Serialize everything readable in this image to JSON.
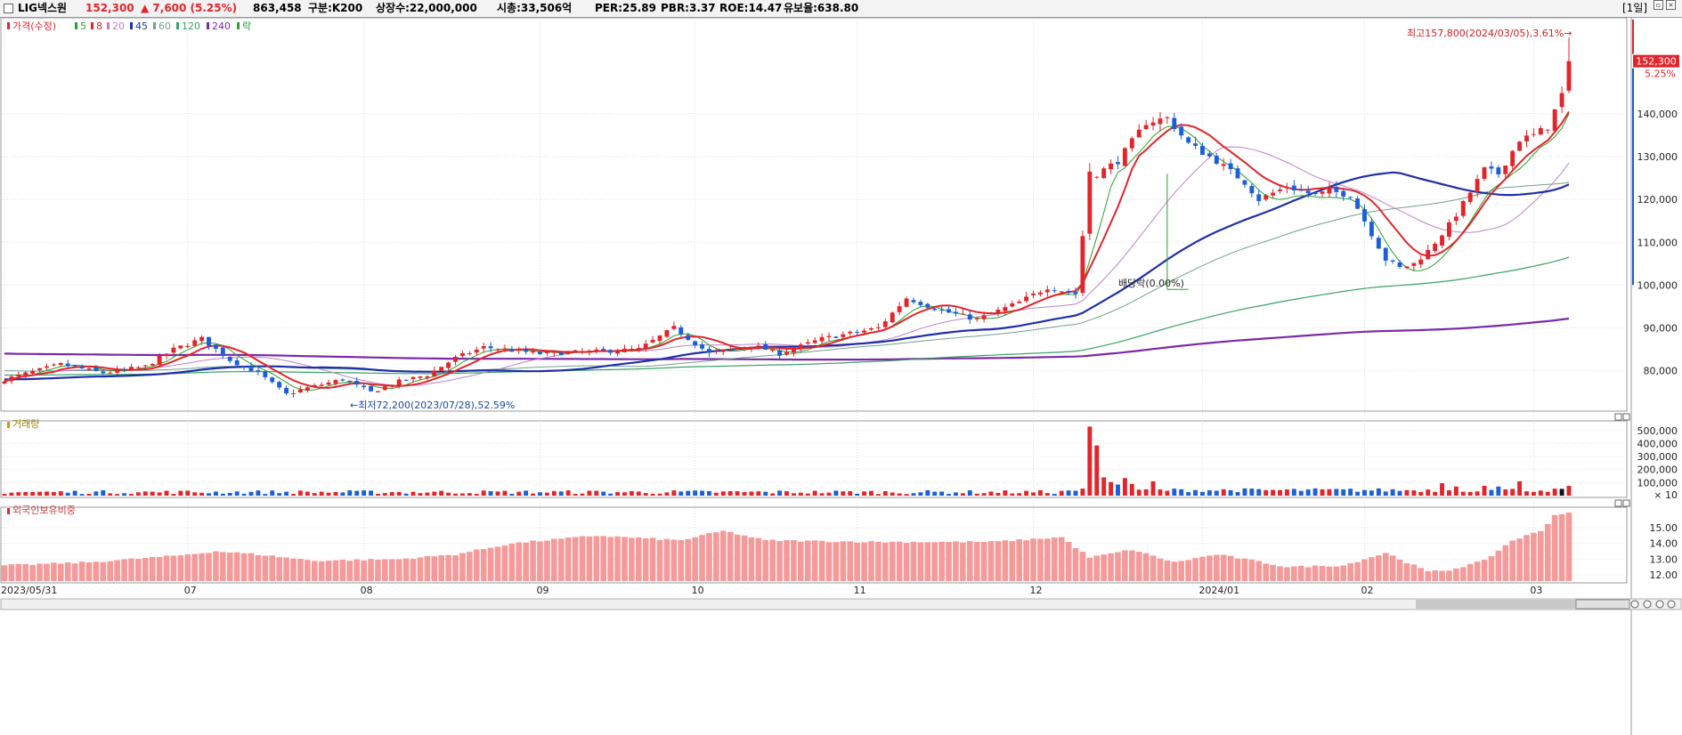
{
  "header": {
    "name": "LIG넥스원",
    "price": "152,300",
    "change": "▲ 7,600 (5.25%)",
    "volume": "863,458",
    "division": "구분:K200",
    "shares": "상장수:22,000,000",
    "marketcap": "시총:33,506억",
    "per": "PER:25.89",
    "pbr": "PBR:3.37",
    "roe": "ROE:14.47",
    "reserve": "유보율:638.80",
    "period": "[1일]"
  },
  "colors": {
    "up": "#e2252b",
    "down": "#1c5fd6",
    "ma5": "#2aa02a",
    "ma8": "#e2252b",
    "ma20": "#c080c8",
    "ma45": "#1f2fa8",
    "ma60": "#70a090",
    "ma120": "#3aa068",
    "ma240": "#7a2aa8",
    "foreign": "#f59a9a"
  },
  "price_legend": [
    {
      "label": "가격(수정)",
      "color": "#e2252b"
    },
    {
      "label": "5",
      "color": "#2aa02a"
    },
    {
      "label": "8",
      "color": "#e2252b"
    },
    {
      "label": "20",
      "color": "#c080c8"
    },
    {
      "label": "45",
      "color": "#1f2fa8"
    },
    {
      "label": "60",
      "color": "#70a090"
    },
    {
      "label": "120",
      "color": "#3aa068"
    },
    {
      "label": "240",
      "color": "#7a2aa8"
    },
    {
      "label": "락",
      "color": "#2aa02a"
    }
  ],
  "chart_data": [
    {
      "type": "candlestick",
      "ylim": [
        71000,
        162000
      ],
      "yticks": [
        "80,000",
        "90,000",
        "100,000",
        "110,000",
        "120,000",
        "130,000",
        "140,000"
      ],
      "yticks_values": [
        80000,
        90000,
        100000,
        110000,
        120000,
        130000,
        140000
      ],
      "last_price_label": "152,300",
      "last_change_label": "5.25%",
      "annotations": {
        "high": "최고157,800(2024/03/05),3.61%→",
        "low": "←최저72,200(2023/07/28),52.59%",
        "dividend": "배당락(0.00%)"
      },
      "anchors": [
        [
          0,
          78000
        ],
        [
          8,
          81500
        ],
        [
          14,
          79500
        ],
        [
          20,
          81000
        ],
        [
          24,
          85000
        ],
        [
          28,
          87500
        ],
        [
          32,
          82500
        ],
        [
          36,
          79500
        ],
        [
          40,
          74500
        ],
        [
          43,
          76000
        ],
        [
          48,
          78000
        ],
        [
          52,
          75000
        ],
        [
          56,
          77500
        ],
        [
          60,
          79000
        ],
        [
          64,
          83000
        ],
        [
          68,
          85500
        ],
        [
          76,
          84000
        ],
        [
          84,
          84500
        ],
        [
          90,
          85000
        ],
        [
          95,
          90000
        ],
        [
          100,
          84000
        ],
        [
          106,
          86000
        ],
        [
          110,
          84000
        ],
        [
          116,
          87500
        ],
        [
          124,
          90000
        ],
        [
          128,
          97000
        ],
        [
          133,
          94000
        ],
        [
          138,
          92000
        ],
        [
          144,
          96000
        ],
        [
          148,
          99500
        ],
        [
          152,
          98000
        ],
        [
          154,
          125000
        ],
        [
          158,
          129000
        ],
        [
          162,
          138000
        ],
        [
          165,
          139000
        ],
        [
          168,
          133000
        ],
        [
          172,
          129000
        ],
        [
          176,
          124000
        ],
        [
          178,
          120000
        ],
        [
          182,
          123000
        ],
        [
          186,
          121000
        ],
        [
          188,
          122000
        ],
        [
          191,
          121000
        ],
        [
          193,
          115000
        ],
        [
          196,
          106000
        ],
        [
          198,
          104000
        ],
        [
          200,
          105000
        ],
        [
          202,
          108000
        ],
        [
          205,
          114000
        ],
        [
          207,
          119000
        ],
        [
          210,
          127000
        ],
        [
          212,
          126000
        ],
        [
          215,
          134000
        ],
        [
          217,
          135000
        ],
        [
          219,
          137000
        ],
        [
          221,
          144500
        ],
        [
          222,
          152300
        ]
      ],
      "ma_final": {
        "ma5": 140000,
        "ma8": 140500,
        "ma20": 128500,
        "ma45": 123500,
        "ma60": 124000,
        "ma120": 106500,
        "ma240": 92200
      }
    },
    {
      "type": "bar",
      "title": "거래량",
      "ylim": [
        0,
        560000
      ],
      "yticks": [
        "100,000",
        "200,000",
        "300,000",
        "400,000",
        "500,000"
      ],
      "yticks_values": [
        100000,
        200000,
        300000,
        400000,
        500000
      ],
      "unit": "× 10",
      "spikes": {
        "154": 530000,
        "155": 385000,
        "156": 140000,
        "157": 105000,
        "158": 85000,
        "159": 135000,
        "160": 90000,
        "163": 110000,
        "204": 95000,
        "206": 70000,
        "210": 75000,
        "212": 70000,
        "215": 110000,
        "222": 75000
      }
    },
    {
      "type": "bar",
      "title": "외국인보유비중",
      "ylim": [
        11.6,
        16.2
      ],
      "yticks": [
        "12.00",
        "13.00",
        "14.00",
        "15.00"
      ],
      "yticks_values": [
        12,
        13,
        14,
        15
      ],
      "anchors": [
        [
          0,
          12.6
        ],
        [
          12,
          12.8
        ],
        [
          24,
          13.2
        ],
        [
          30,
          13.5
        ],
        [
          36,
          13.3
        ],
        [
          44,
          12.9
        ],
        [
          56,
          13.0
        ],
        [
          64,
          13.3
        ],
        [
          72,
          14.0
        ],
        [
          84,
          14.5
        ],
        [
          96,
          14.2
        ],
        [
          102,
          14.8
        ],
        [
          108,
          14.2
        ],
        [
          124,
          14.1
        ],
        [
          140,
          14.1
        ],
        [
          150,
          14.4
        ],
        [
          154,
          13.1
        ],
        [
          160,
          13.6
        ],
        [
          166,
          12.8
        ],
        [
          172,
          13.3
        ],
        [
          176,
          13.0
        ],
        [
          182,
          12.5
        ],
        [
          190,
          12.6
        ],
        [
          196,
          13.4
        ],
        [
          200,
          12.6
        ],
        [
          202,
          12.2
        ],
        [
          205,
          12.3
        ],
        [
          210,
          12.9
        ],
        [
          214,
          14.2
        ],
        [
          218,
          14.8
        ],
        [
          220,
          15.8
        ],
        [
          222,
          16.0
        ]
      ]
    }
  ],
  "xaxis": {
    "labels": [
      {
        "text": "2023/05/31",
        "i": 0
      },
      {
        "text": "07",
        "i": 26
      },
      {
        "text": "08",
        "i": 51
      },
      {
        "text": "09",
        "i": 76
      },
      {
        "text": "10",
        "i": 98
      },
      {
        "text": "11",
        "i": 121
      },
      {
        "text": "12",
        "i": 146
      },
      {
        "text": "2024/01",
        "i": 170
      },
      {
        "text": "02",
        "i": 193
      },
      {
        "text": "03",
        "i": 217
      }
    ]
  },
  "panels": {
    "volume_title": "거래량",
    "foreign_title": "외국인보유비중"
  }
}
